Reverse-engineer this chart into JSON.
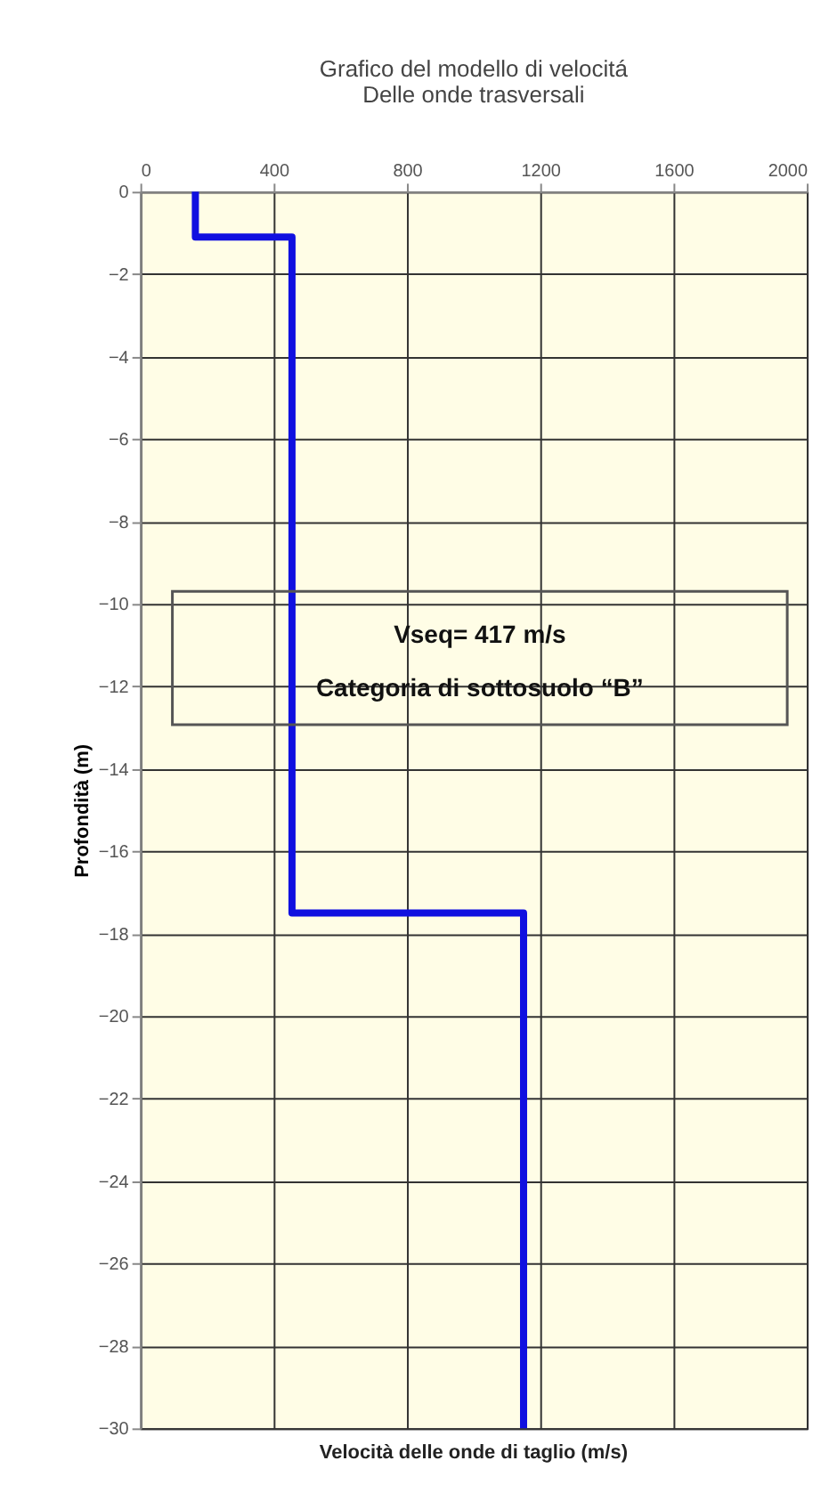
{
  "chart_data": {
    "type": "line",
    "title": [
      "Grafico del modello di velocitá",
      "Delle onde trasversali"
    ],
    "xlabel": "Velocità delle onde di taglio (m/s)",
    "ylabel": "Profondità (m)",
    "series": [
      {
        "color": "#1010e0",
        "x": [
          165,
          165,
          455,
          455,
          1150,
          1150
        ],
        "values": [
          0,
          -1.1,
          -1.1,
          -17.5,
          -17.5,
          -30
        ]
      }
    ],
    "xlim": [
      0,
      2000
    ],
    "xticks": [
      0,
      400,
      800,
      1200,
      1600,
      2000
    ],
    "ylim": [
      -30,
      0
    ],
    "yticks": [
      0,
      -2,
      -4,
      -6,
      -8,
      -10,
      -12,
      -14,
      -16,
      -18,
      -20,
      -22,
      -24,
      -26,
      -28,
      -30
    ],
    "grid": true,
    "marker": "none",
    "line_style": "solid",
    "annotations": [
      "Vseq= 417 m/s",
      "Categoria di sottosuolo  “B”"
    ]
  }
}
